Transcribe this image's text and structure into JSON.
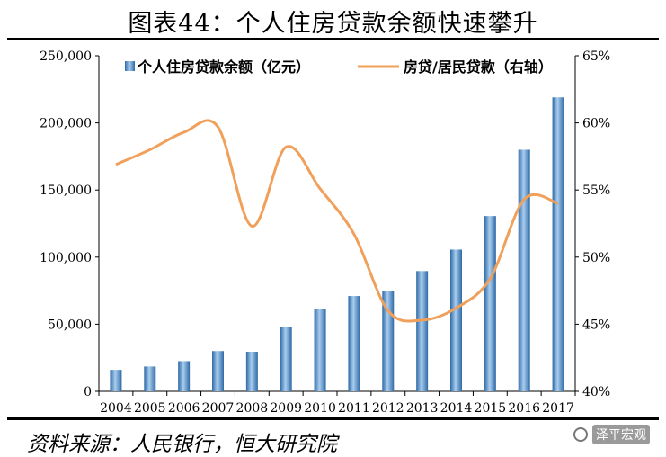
{
  "title": "图表44：个人住房贷款余额快速攀升",
  "source": "资料来源：人民银行，恒大研究院",
  "watermark": "泽平宏观",
  "colors": {
    "bar_light": "#9fc3e8",
    "bar_dark": "#2e6aa5",
    "line": "#f0a05a",
    "axis": "#000000"
  },
  "chart_data": {
    "type": "bar",
    "categories": [
      "2004",
      "2005",
      "2006",
      "2007",
      "2008",
      "2009",
      "2010",
      "2011",
      "2012",
      "2013",
      "2014",
      "2015",
      "2016",
      "2017"
    ],
    "series": [
      {
        "name": "个人住房贷款余额（亿元）",
        "type": "bar",
        "axis": "left",
        "values": [
          16000,
          18500,
          22500,
          30000,
          29500,
          47600,
          61600,
          71000,
          75000,
          89600,
          105600,
          130600,
          180000,
          219000
        ]
      },
      {
        "name": "房贷/居民贷款（右轴）",
        "type": "line",
        "axis": "right",
        "values": [
          56.9,
          58.0,
          59.3,
          59.7,
          52.3,
          58.2,
          55.1,
          51.7,
          46.0,
          45.3,
          46.2,
          48.4,
          54.3,
          54.0
        ]
      }
    ],
    "y_left": {
      "min": 0,
      "max": 250000,
      "ticks": [
        "0",
        "50,000",
        "100,000",
        "150,000",
        "200,000",
        "250,000"
      ]
    },
    "y_right": {
      "min": 40,
      "max": 65,
      "ticks": [
        "40%",
        "45%",
        "50%",
        "55%",
        "60%",
        "65%"
      ]
    },
    "legend_position": "top"
  }
}
